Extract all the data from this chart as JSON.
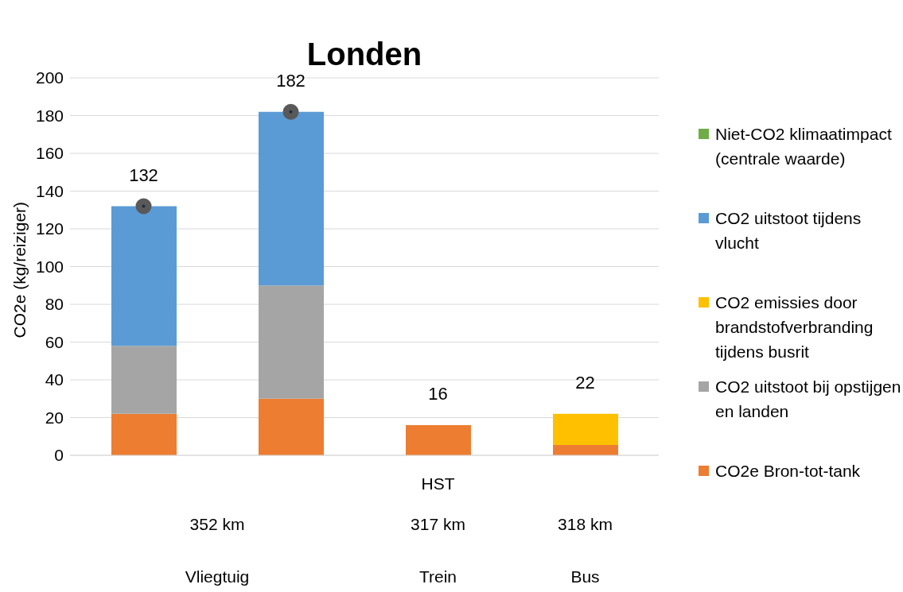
{
  "chart_data": {
    "type": "bar",
    "title": "Londen",
    "ylabel": "CO2e (kg/reiziger)",
    "categories": [
      null,
      null,
      "HST",
      null
    ],
    "stacked": true,
    "series": [
      {
        "name": "CO2e Bron-tot-tank",
        "color": "#ed7d31",
        "values": [
          22,
          30,
          16,
          5.5
        ]
      },
      {
        "name": "CO2 uitstoot bij opstijgen en landen",
        "color": "#a5a5a5",
        "values": [
          36,
          60,
          null,
          null
        ]
      },
      {
        "name": "CO2 emissies door brandstofverbranding tijdens busrit",
        "color": "#ffc000",
        "values": [
          null,
          null,
          null,
          16.5
        ]
      },
      {
        "name": "CO2 uitstoot tijdens vlucht",
        "color": "#5b9bd5",
        "values": [
          74,
          92,
          null,
          null
        ]
      },
      {
        "name": "Niet-CO2 klimaatimpact (centrale waarde)",
        "color": "#70ad47",
        "values": [
          null,
          null,
          null,
          null
        ]
      },
      {
        "type": "scatter",
        "color": "#595959",
        "values": [
          132,
          182,
          null,
          null
        ],
        "marker": "circle"
      }
    ],
    "totals": [
      "132",
      "182",
      "16",
      "22"
    ],
    "annotations": [
      "352 km",
      "317 km",
      "318 km",
      "Vliegtuig",
      "Trein",
      "Bus"
    ],
    "ylim": [
      0,
      200
    ],
    "yticks": [
      0,
      20,
      40,
      60,
      80,
      100,
      120,
      140,
      160,
      180,
      200
    ],
    "grid": "y",
    "legend": "right"
  }
}
